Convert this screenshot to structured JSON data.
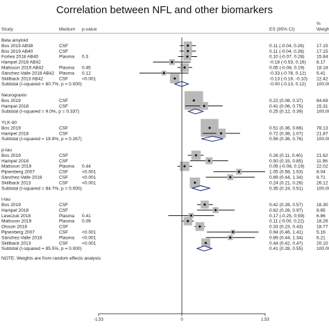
{
  "title": "Correlation between NFL and other biomarkers",
  "columns": {
    "study": "Study",
    "medium": "Medium",
    "pvalue": "p-value",
    "es": "ES (95% CI)",
    "weight_line1": "%",
    "weight_line2": "Weight"
  },
  "footnote": "NOTE: Weights are from random effects analysis",
  "chart_data": {
    "type": "forest",
    "xaxis": {
      "ticks": [
        -1.53,
        0,
        1.53
      ],
      "tick_labels": [
        "-1.53",
        "0",
        "1.53"
      ],
      "range": [
        -1.53,
        1.53
      ]
    },
    "groups": [
      {
        "name": "Beta amyloid",
        "studies": [
          {
            "study": "Bos 2019 AB38",
            "medium": "CSF",
            "pvalue": "",
            "es": 0.11,
            "lo": -0.04,
            "hi": 0.26,
            "es_text": "0.11 (-0.04, 0.26)",
            "weight": "17.15"
          },
          {
            "study": "Bos 2019 AB40",
            "medium": "CSF",
            "pvalue": "",
            "es": 0.11,
            "lo": -0.04,
            "hi": 0.26,
            "es_text": "0.11 (-0.04, 0.26)",
            "weight": "17.15"
          },
          {
            "study": "Fortea 2018 AB40",
            "medium": "Plasma",
            "pvalue": "0.3",
            "es": 0.1,
            "lo": -0.07,
            "hi": 0.28,
            "es_text": "0.10 (-0.07, 0.28)",
            "weight": "15.84"
          },
          {
            "study": "Hampel 2018 AB42",
            "medium": "",
            "pvalue": "",
            "es": -0.18,
            "lo": -0.53,
            "hi": 0.16,
            "es_text": "-0.18 (-0.53, 0.16)",
            "weight": "8.17"
          },
          {
            "study": "Mattsson 2019 AB42",
            "medium": "Plasma",
            "pvalue": "0.45",
            "es": 0.05,
            "lo": -0.08,
            "hi": 0.19,
            "es_text": "0.05 (-0.08, 0.19)",
            "weight": "18.18"
          },
          {
            "study": "Sánchez-Valle 2018 AB42",
            "medium": "Plasma",
            "pvalue": "0.12",
            "es": -0.33,
            "lo": -0.78,
            "hi": 0.12,
            "es_text": "-0.33 (-0.78, 0.12)",
            "weight": "5.41"
          },
          {
            "study": "Skillback 2013 AB42",
            "medium": "CSF",
            "pvalue": "<0.001",
            "es": -0.13,
            "lo": -0.16,
            "hi": -0.1,
            "es_text": "-0.13 (-0.16, -0.10)",
            "weight": "22.42"
          }
        ],
        "subtotal": {
          "label": "Subtotal  (I-squared = 80.7%, p = 0.000)",
          "es": 0.0,
          "lo": -0.13,
          "hi": 0.12,
          "es_text": "-0.00 (-0.13, 0.12)",
          "weight": "100.00"
        }
      },
      {
        "name": "Neurogranin",
        "studies": [
          {
            "study": "Bos 2019",
            "medium": "CSF",
            "pvalue": "",
            "es": 0.22,
            "lo": 0.08,
            "hi": 0.37,
            "es_text": "0.22 (0.08, 0.37)",
            "weight": "84.69"
          },
          {
            "study": "Hampel 2018",
            "medium": "CSF",
            "pvalue": "",
            "es": 0.41,
            "lo": 0.06,
            "hi": 0.75,
            "es_text": "0.41 (0.06, 0.75)",
            "weight": "15.31"
          }
        ],
        "subtotal": {
          "label": "Subtotal  (I-squared = 9.0%, p = 0.337)",
          "es": 0.25,
          "lo": 0.12,
          "hi": 0.39,
          "es_text": "0.25 (0.12, 0.39)",
          "weight": "100.00"
        }
      },
      {
        "name": "YLK-40",
        "studies": [
          {
            "study": "Bos 2019",
            "medium": "CSF",
            "pvalue": "",
            "es": 0.51,
            "lo": 0.36,
            "hi": 0.66,
            "es_text": "0.51 (0.36, 0.66)",
            "weight": "78.13"
          },
          {
            "study": "Hampel 2018",
            "medium": "CSF",
            "pvalue": "",
            "es": 0.72,
            "lo": 0.38,
            "hi": 1.07,
            "es_text": "0.72 (0.38, 1.07)",
            "weight": "21.87"
          }
        ],
        "subtotal": {
          "label": "Subtotal  (I-squared = 18.9%, p = 0.267)",
          "es": 0.56,
          "lo": 0.36,
          "hi": 0.76,
          "es_text": "0.56 (0.36, 0.76)",
          "weight": "100.00"
        }
      },
      {
        "name": "p-tau",
        "studies": [
          {
            "study": "Bos 2019",
            "medium": "CSF",
            "pvalue": "",
            "es": 0.26,
            "lo": 0.11,
            "hi": 0.4,
            "es_text": "0.26 (0.11, 0.40)",
            "weight": "21.62"
          },
          {
            "study": "Hampel 2018",
            "medium": "CSF",
            "pvalue": "",
            "es": 0.5,
            "lo": 0.15,
            "hi": 0.85,
            "es_text": "0.50 (0.15, 0.85)",
            "weight": "11.96"
          },
          {
            "study": "Mattsson 2019",
            "medium": "Plasma",
            "pvalue": "0.44",
            "es": 0.05,
            "lo": -0.08,
            "hi": 0.19,
            "es_text": "0.05 (-0.08, 0.19)",
            "weight": "22.02"
          },
          {
            "study": "Pijnenberg 2007",
            "medium": "CSF",
            "pvalue": "<0.001",
            "es": 1.05,
            "lo": 0.58,
            "hi": 1.53,
            "es_text": "1.05 (0.58, 1.53)",
            "weight": "8.04"
          },
          {
            "study": "Sánchez-Valle 2018",
            "medium": "CSF",
            "pvalue": "<0.001",
            "es": 0.89,
            "lo": 0.44,
            "hi": 1.34,
            "es_text": "0.89 (0.44, 1.34)",
            "weight": "8.71"
          },
          {
            "study": "Skillback 2013",
            "medium": "CSF",
            "pvalue": "<0.001",
            "es": 0.24,
            "lo": 0.21,
            "hi": 0.26,
            "es_text": "0.24 (0.21, 0.26)",
            "weight": "26.12"
          }
        ],
        "subtotal": {
          "label": "Subtotal  (I-squared = 84.7%, p = 0.000)",
          "es": 0.35,
          "lo": 0.19,
          "hi": 0.51,
          "es_text": "0.35 (0.19, 0.51)",
          "weight": "100.00"
        }
      },
      {
        "name": "t-tau",
        "studies": [
          {
            "study": "Bos 2019",
            "medium": "CSF",
            "pvalue": "",
            "es": 0.42,
            "lo": 0.28,
            "hi": 0.57,
            "es_text": "0.42 (0.28, 0.57)",
            "weight": "16.30"
          },
          {
            "study": "Hampel 2018",
            "medium": "CSF",
            "pvalue": "",
            "es": 0.62,
            "lo": 0.28,
            "hi": 0.97,
            "es_text": "0.62 (0.28, 0.97)",
            "weight": "8.65"
          },
          {
            "study": "Lewczuk 2018",
            "medium": "Plasma",
            "pvalue": "0.41",
            "es": 0.17,
            "lo": -0.25,
            "hi": 0.59,
            "es_text": "0.17 (-0.25, 0.59)",
            "weight": "6.86"
          },
          {
            "study": "Mattsson 2019",
            "medium": "Plasma",
            "pvalue": "0.09",
            "es": 0.11,
            "lo": 0.0,
            "hi": 0.22,
            "es_text": "0.11 (-0.00, 0.22)",
            "weight": "18.26"
          },
          {
            "study": "Olsson 2018",
            "medium": "CSF",
            "pvalue": "",
            "es": 0.33,
            "lo": 0.23,
            "hi": 0.43,
            "es_text": "0.33 (0.23, 0.43)",
            "weight": "18.77"
          },
          {
            "study": "Pijnenberg 2007",
            "medium": "CSF",
            "pvalue": "<0.001",
            "es": 0.94,
            "lo": 0.46,
            "hi": 1.41,
            "es_text": "0.94 (0.46, 1.41)",
            "weight": "5.16"
          },
          {
            "study": "Sánchez-Valle 2018",
            "medium": "Plasma",
            "pvalue": "<0.001",
            "es": 0.89,
            "lo": 0.44,
            "hi": 1.34,
            "es_text": "0.89 (0.44, 1.34)",
            "weight": "6.21"
          },
          {
            "study": "Skillback 2013",
            "medium": "CSF",
            "pvalue": "<0.001",
            "es": 0.44,
            "lo": 0.42,
            "hi": 0.47,
            "es_text": "0.44 (0.42, 0.47)",
            "weight": "20.10"
          }
        ],
        "subtotal": {
          "label": "Subtotal  (I-squared = 85.5%, p = 0.000)",
          "es": 0.41,
          "lo": 0.28,
          "hi": 0.55,
          "es_text": "0.41 (0.28, 0.55)",
          "weight": "100.00"
        }
      }
    ]
  }
}
